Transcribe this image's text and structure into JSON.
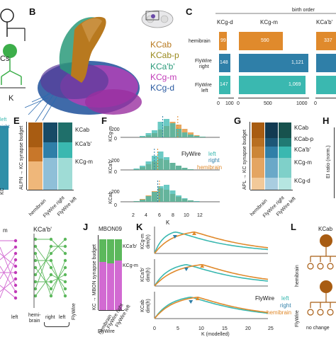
{
  "panel_labels": {
    "b": "B",
    "c": "C",
    "e": "E",
    "f": "F",
    "g": "G",
    "h": "H",
    "j": "J",
    "k": "K",
    "l": "L"
  },
  "legend_b": [
    "KCab",
    "KCab-p",
    "KCa'b'",
    "KCg-m",
    "KCg-d"
  ],
  "colors": {
    "kcab": "#b8791f",
    "kcabp": "#9a8a1e",
    "kcapbp": "#2a9a7a",
    "kcgm": "#c13bb8",
    "kcgd": "#2a5aa0",
    "hemibrain": "#e08a2c",
    "flywire_right": "#2f7fa8",
    "flywire_left": "#3ab8b0",
    "dark_orange": "#a85c12",
    "green": "#5cb85c",
    "pink": "#d26ad2"
  },
  "panel_a": {
    "label": "Cs",
    "sub": "K"
  },
  "panel_c": {
    "top": "birth order",
    "col_titles": [
      "KCg-d",
      "KCg-m",
      "KCa'b'"
    ],
    "rows": [
      "hemibrain",
      "FlyWire\nright",
      "FlyWire\nleft"
    ],
    "kcgd_values": [
      "99",
      "148",
      "147"
    ],
    "kcgm_values": [
      "590",
      "1,121",
      "1,069"
    ],
    "kcapbp_values": [
      "337",
      "",
      ""
    ],
    "x_ticks_1": [
      "0",
      "100"
    ],
    "x_ticks_2": [
      "0",
      "500",
      "1000"
    ],
    "x_ticks_3": [
      "0"
    ]
  },
  "panel_d_partial": {
    "left": "left",
    "right": "right",
    "ylabel": "KC"
  },
  "panel_e": {
    "ylabel": "ALPN → KC synapse budget",
    "categories": [
      "hemibrain",
      "FlyWire right",
      "FlyWire left"
    ],
    "labels": [
      "KCab",
      "KCa'b'",
      "KCg-m"
    ]
  },
  "panel_f": {
    "ylabels": [
      "KCg-m",
      "KCa'b'",
      "KCab"
    ],
    "yticks": [
      "200",
      "0"
    ],
    "x_ticks": [
      "2",
      "4",
      "6",
      "8",
      "10",
      "12"
    ],
    "xlabel": "K",
    "legend": {
      "flywire": "FlyWire",
      "left": "left",
      "right": "right",
      "hemibrain": "hemibrain"
    }
  },
  "panel_g": {
    "ylabel": "APL → KC synapse budget",
    "categories": [
      "hemibrain",
      "FlyWire right",
      "FlyWire left"
    ],
    "labels": [
      "KCab",
      "KCab-p",
      "KCa'b'",
      "KCg-m",
      "KCg-d"
    ]
  },
  "panel_h": {
    "ylabel": "EI ratio (norm.)"
  },
  "panel_i_partial": {
    "titles": [
      "m",
      "KCa'b'"
    ],
    "x_labels": [
      "hemi-\nbrain",
      "right",
      "left",
      "left"
    ],
    "side": "FlyWire"
  },
  "panel_j": {
    "title": "MBON09",
    "ylabel": "KC → MBON synapse budget",
    "labels": [
      "KCa'b'",
      "KCg-m"
    ],
    "categories": [
      "hemibrain",
      "FlyWire right",
      "FlyWire left"
    ],
    "xlabel": "FlyWire"
  },
  "panel_k": {
    "ylabels": [
      "KCg-m\ndim(h)",
      "KCa'b'\ndim(h)",
      "KCab\ndim(h)"
    ],
    "x_ticks": [
      "0",
      "5",
      "10",
      "15",
      "20",
      "25"
    ],
    "xlabel": "K (modelled)",
    "legend": {
      "flywire": "FlyWire",
      "left": "left",
      "right": "right",
      "hemibrain": "hemibrain"
    }
  },
  "panel_l": {
    "title": "KCab",
    "rows": [
      "hemibrain",
      "FlyWire"
    ],
    "note": "no change"
  }
}
